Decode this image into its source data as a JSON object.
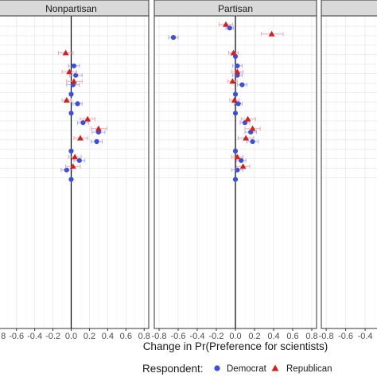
{
  "chart_data": {
    "type": "scatter",
    "facets": [
      {
        "label": "Nonpartisan"
      },
      {
        "label": "Partisan"
      },
      {
        "label": ""
      }
    ],
    "xlabel": "Change in Pr(Preference for scientists)",
    "xlim": [
      -0.85,
      0.85
    ],
    "xticks": [
      -0.8,
      -0.6,
      -0.4,
      -0.2,
      0.0,
      0.2,
      0.4,
      0.6,
      0.8
    ],
    "xtick_labels": [
      "-0.8",
      "-0.6",
      "-0.4",
      "-0.2",
      "0.0",
      "0.2",
      "0.4",
      "0.6",
      "0.8"
    ],
    "reference_line_x": 0,
    "grid": true,
    "legend": {
      "title": "Respondent:",
      "position": "bottom",
      "entries": [
        {
          "label": "Democrat",
          "color": "#3b4fd8",
          "shape": "circle"
        },
        {
          "label": "Republican",
          "color": "#d62020",
          "shape": "triangle"
        }
      ]
    },
    "series": [
      {
        "name": "Democrat",
        "color": "#3b4fd8",
        "ci_color": "#a6b0ee",
        "facets": [
          {
            "points": [
              {
                "row": 4,
                "x": 0.03,
                "lo": -0.03,
                "hi": 0.09
              },
              {
                "row": 5,
                "x": 0.05,
                "lo": -0.02,
                "hi": 0.12
              },
              {
                "row": 6,
                "x": 0.02,
                "lo": -0.05,
                "hi": 0.09
              },
              {
                "row": 7,
                "x": 0.0,
                "lo": 0.0,
                "hi": 0.0
              },
              {
                "row": 8,
                "x": 0.07,
                "lo": 0.02,
                "hi": 0.12
              },
              {
                "row": 9,
                "x": 0.0,
                "lo": 0.0,
                "hi": 0.0
              },
              {
                "row": 10,
                "x": 0.13,
                "lo": 0.07,
                "hi": 0.19
              },
              {
                "row": 11,
                "x": 0.3,
                "lo": 0.23,
                "hi": 0.37
              },
              {
                "row": 12,
                "x": 0.28,
                "lo": 0.22,
                "hi": 0.34
              },
              {
                "row": 13,
                "x": 0.0,
                "lo": 0.0,
                "hi": 0.0
              },
              {
                "row": 14,
                "x": 0.09,
                "lo": 0.03,
                "hi": 0.15
              },
              {
                "row": 15,
                "x": -0.05,
                "lo": -0.11,
                "hi": 0.01
              },
              {
                "row": 16,
                "x": 0.0,
                "lo": 0.0,
                "hi": 0.0
              }
            ]
          },
          {
            "points": [
              {
                "row": 0,
                "x": -0.06,
                "lo": -0.1,
                "hi": -0.02
              },
              {
                "row": 1,
                "x": -0.65,
                "lo": -0.7,
                "hi": -0.6
              },
              {
                "row": 3,
                "x": 0.0,
                "lo": 0.0,
                "hi": 0.0
              },
              {
                "row": 4,
                "x": 0.02,
                "lo": -0.03,
                "hi": 0.07
              },
              {
                "row": 5,
                "x": 0.02,
                "lo": -0.03,
                "hi": 0.07
              },
              {
                "row": 6,
                "x": 0.07,
                "lo": 0.02,
                "hi": 0.12
              },
              {
                "row": 7,
                "x": 0.0,
                "lo": 0.0,
                "hi": 0.0
              },
              {
                "row": 8,
                "x": 0.03,
                "lo": -0.01,
                "hi": 0.07
              },
              {
                "row": 9,
                "x": 0.0,
                "lo": 0.0,
                "hi": 0.0
              },
              {
                "row": 10,
                "x": 0.1,
                "lo": 0.05,
                "hi": 0.15
              },
              {
                "row": 11,
                "x": 0.16,
                "lo": 0.1,
                "hi": 0.22
              },
              {
                "row": 12,
                "x": 0.18,
                "lo": 0.12,
                "hi": 0.24
              },
              {
                "row": 13,
                "x": 0.0,
                "lo": 0.0,
                "hi": 0.0
              },
              {
                "row": 14,
                "x": 0.06,
                "lo": 0.01,
                "hi": 0.11
              },
              {
                "row": 15,
                "x": 0.02,
                "lo": -0.04,
                "hi": 0.08
              },
              {
                "row": 16,
                "x": 0.0,
                "lo": 0.0,
                "hi": 0.0
              }
            ]
          },
          {
            "points": []
          }
        ]
      },
      {
        "name": "Republican",
        "color": "#d62020",
        "ci_color": "#eea8b0",
        "facets": [
          {
            "points": [
              {
                "row": 3,
                "x": -0.06,
                "lo": -0.14,
                "hi": 0.02
              },
              {
                "row": 5,
                "x": -0.02,
                "lo": -0.1,
                "hi": 0.06
              },
              {
                "row": 6,
                "x": 0.03,
                "lo": -0.05,
                "hi": 0.12
              },
              {
                "row": 8,
                "x": -0.05,
                "lo": -0.1,
                "hi": 0.0
              },
              {
                "row": 10,
                "x": 0.18,
                "lo": 0.1,
                "hi": 0.26
              },
              {
                "row": 11,
                "x": 0.3,
                "lo": 0.22,
                "hi": 0.39
              },
              {
                "row": 12,
                "x": 0.1,
                "lo": 0.03,
                "hi": 0.18
              },
              {
                "row": 14,
                "x": 0.04,
                "lo": -0.03,
                "hi": 0.11
              },
              {
                "row": 15,
                "x": 0.02,
                "lo": -0.06,
                "hi": 0.1
              }
            ]
          },
          {
            "points": [
              {
                "row": 0,
                "x": -0.1,
                "lo": -0.17,
                "hi": -0.03
              },
              {
                "row": 1,
                "x": 0.38,
                "lo": 0.27,
                "hi": 0.5
              },
              {
                "row": 3,
                "x": -0.02,
                "lo": -0.07,
                "hi": 0.03
              },
              {
                "row": 5,
                "x": 0.02,
                "lo": -0.04,
                "hi": 0.08
              },
              {
                "row": 6,
                "x": -0.03,
                "lo": -0.08,
                "hi": 0.02
              },
              {
                "row": 8,
                "x": -0.01,
                "lo": -0.06,
                "hi": 0.04
              },
              {
                "row": 10,
                "x": 0.13,
                "lo": 0.06,
                "hi": 0.21
              },
              {
                "row": 11,
                "x": 0.18,
                "lo": 0.1,
                "hi": 0.26
              },
              {
                "row": 12,
                "x": 0.11,
                "lo": 0.03,
                "hi": 0.19
              },
              {
                "row": 14,
                "x": 0.02,
                "lo": -0.04,
                "hi": 0.08
              },
              {
                "row": 15,
                "x": 0.08,
                "lo": 0.01,
                "hi": 0.15
              }
            ]
          },
          {
            "points": []
          }
        ]
      }
    ]
  }
}
